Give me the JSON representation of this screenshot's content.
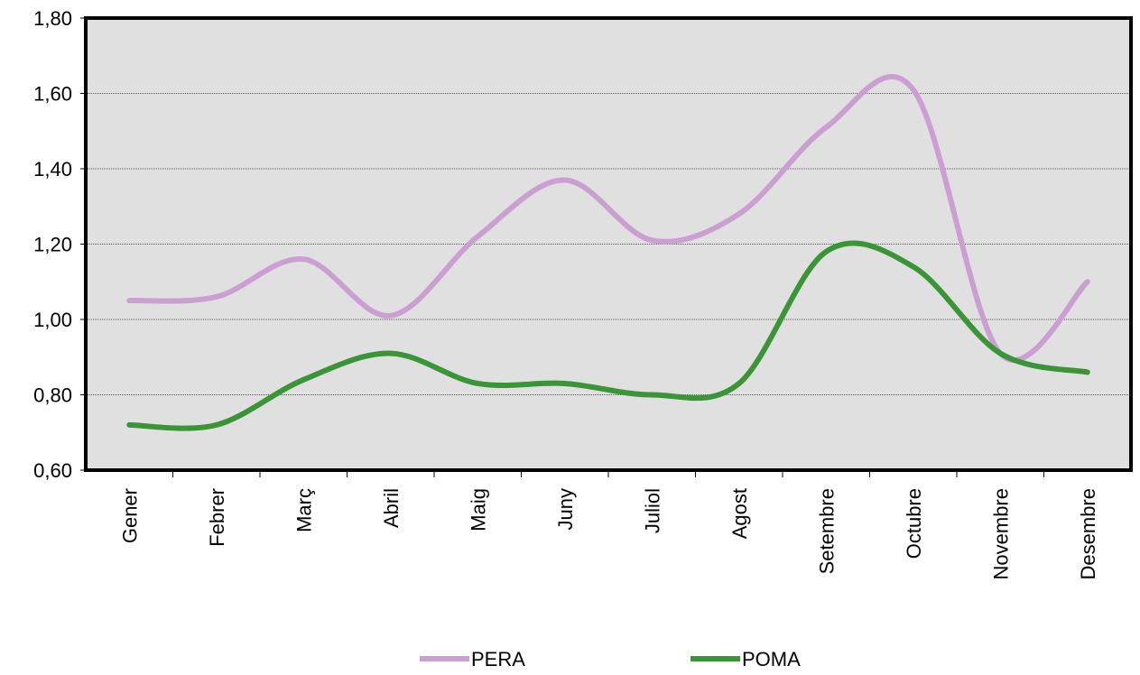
{
  "chart_data": {
    "type": "line",
    "categories": [
      "Gener",
      "Febrer",
      "Març",
      "Abril",
      "Maig",
      "Juny",
      "Juliol",
      "Agost",
      "Setembre",
      "Octubre",
      "Novembre",
      "Desembre"
    ],
    "series": [
      {
        "name": "PERA",
        "color": "#cc9fd2",
        "values": [
          1.05,
          1.06,
          1.16,
          1.01,
          1.22,
          1.37,
          1.21,
          1.28,
          1.51,
          1.61,
          0.91,
          1.1
        ]
      },
      {
        "name": "POMA",
        "color": "#3a9536",
        "values": [
          0.72,
          0.72,
          0.84,
          0.91,
          0.83,
          0.83,
          0.8,
          0.83,
          1.18,
          1.14,
          0.91,
          0.86
        ]
      }
    ],
    "ylim": [
      0.6,
      1.8
    ],
    "yticks": [
      {
        "value": 0.6,
        "label": "0,60"
      },
      {
        "value": 0.8,
        "label": "0,80"
      },
      {
        "value": 1.0,
        "label": "1,00"
      },
      {
        "value": 1.2,
        "label": "1,20"
      },
      {
        "value": 1.4,
        "label": "1,40"
      },
      {
        "value": 1.6,
        "label": "1,60"
      },
      {
        "value": 1.8,
        "label": "1,80"
      }
    ],
    "grid": true,
    "legend": "bottom",
    "smooth": true
  }
}
